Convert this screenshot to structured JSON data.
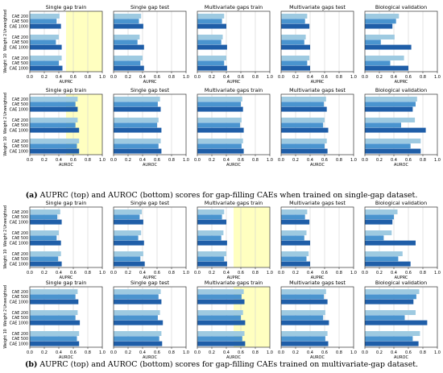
{
  "colors": {
    "cae200": "#9ecae1",
    "cae500": "#4a94cf",
    "cae1000": "#1f5ea8",
    "highlight": "#ffffc0",
    "grid": "#d0d0d0",
    "axis": "#333333"
  },
  "categories": [
    "CAE 200",
    "CAE 500",
    "CAE 1000"
  ],
  "group_labels": [
    "Unweighted",
    "Weight 2",
    "Weight 10"
  ],
  "tick_labels": [
    "0.0",
    "0.2",
    "0.4",
    "0.6",
    "0.8",
    "1.0"
  ],
  "captions": {
    "a": {
      "label": "(a)",
      "text": " AUPRC (top) and AUROC (bottom) scores for gap-filling CAEs when trained on single-gap dataset."
    },
    "b": {
      "label": "(b)",
      "text": " AUPRC (top) and AUROC (bottom) scores for gap-filling CAEs trained on multivariate-gap dataset."
    }
  },
  "chart_data": [
    {
      "id": "a-auprc",
      "type": "bar",
      "orientation": "horizontal",
      "xlabel": "AUPRC",
      "xlim": [
        0,
        1
      ],
      "highlight_panel": 0,
      "panels": [
        {
          "title": "Single gap train",
          "values": [
            [
              0.41,
              0.37,
              0.43
            ],
            [
              0.4,
              0.36,
              0.44
            ],
            [
              0.44,
              0.4,
              0.45
            ]
          ]
        },
        {
          "title": "Single gap test",
          "values": [
            [
              0.38,
              0.35,
              0.41
            ],
            [
              0.36,
              0.33,
              0.42
            ],
            [
              0.4,
              0.37,
              0.42
            ]
          ]
        },
        {
          "title": "Multivariate gaps train",
          "values": [
            [
              0.37,
              0.34,
              0.4
            ],
            [
              0.35,
              0.33,
              0.41
            ],
            [
              0.4,
              0.37,
              0.41
            ]
          ]
        },
        {
          "title": "Multivariate gaps test",
          "values": [
            [
              0.36,
              0.33,
              0.39
            ],
            [
              0.34,
              0.32,
              0.4
            ],
            [
              0.39,
              0.36,
              0.4
            ]
          ]
        },
        {
          "title": "Biological validation",
          "values": [
            [
              0.47,
              0.43,
              0.38
            ],
            [
              0.41,
              0.22,
              0.64
            ],
            [
              0.54,
              0.35,
              0.6
            ]
          ]
        }
      ]
    },
    {
      "id": "a-auroc",
      "type": "bar",
      "orientation": "horizontal",
      "xlabel": "AUROC",
      "xlim": [
        0,
        1
      ],
      "highlight_panel": 0,
      "panels": [
        {
          "title": "Single gap train",
          "values": [
            [
              0.66,
              0.63,
              0.66
            ],
            [
              0.66,
              0.63,
              0.68
            ],
            [
              0.68,
              0.65,
              0.68
            ]
          ]
        },
        {
          "title": "Single gap test",
          "values": [
            [
              0.64,
              0.61,
              0.65
            ],
            [
              0.62,
              0.6,
              0.66
            ],
            [
              0.65,
              0.62,
              0.66
            ]
          ]
        },
        {
          "title": "Multivariate gaps train",
          "values": [
            [
              0.62,
              0.6,
              0.63
            ],
            [
              0.61,
              0.59,
              0.64
            ],
            [
              0.63,
              0.61,
              0.64
            ]
          ]
        },
        {
          "title": "Multivariate gaps test",
          "values": [
            [
              0.62,
              0.59,
              0.63
            ],
            [
              0.6,
              0.58,
              0.65
            ],
            [
              0.63,
              0.6,
              0.64
            ]
          ]
        },
        {
          "title": "Biological validation",
          "values": [
            [
              0.72,
              0.7,
              0.66
            ],
            [
              0.69,
              0.5,
              0.84
            ],
            [
              0.77,
              0.63,
              0.77
            ]
          ]
        }
      ]
    },
    {
      "id": "b-auprc",
      "type": "bar",
      "orientation": "horizontal",
      "xlabel": "AUPRC",
      "xlim": [
        0,
        1
      ],
      "highlight_panel": 2,
      "panels": [
        {
          "title": "Single gap train",
          "values": [
            [
              0.42,
              0.38,
              0.44
            ],
            [
              0.4,
              0.37,
              0.43
            ],
            [
              0.43,
              0.39,
              0.44
            ]
          ]
        },
        {
          "title": "Single gap test",
          "values": [
            [
              0.39,
              0.36,
              0.41
            ],
            [
              0.38,
              0.34,
              0.42
            ],
            [
              0.41,
              0.37,
              0.43
            ]
          ]
        },
        {
          "title": "Multivariate gaps train",
          "values": [
            [
              0.37,
              0.34,
              0.4
            ],
            [
              0.36,
              0.33,
              0.41
            ],
            [
              0.4,
              0.37,
              0.41
            ]
          ]
        },
        {
          "title": "Multivariate gaps test",
          "values": [
            [
              0.36,
              0.33,
              0.39
            ],
            [
              0.35,
              0.32,
              0.4
            ],
            [
              0.38,
              0.35,
              0.4
            ]
          ]
        },
        {
          "title": "Biological validation",
          "values": [
            [
              0.45,
              0.4,
              0.38
            ],
            [
              0.37,
              0.26,
              0.7
            ],
            [
              0.52,
              0.46,
              0.63
            ]
          ]
        }
      ]
    },
    {
      "id": "b-auroc",
      "type": "bar",
      "orientation": "horizontal",
      "xlabel": "AUROC",
      "xlim": [
        0,
        1
      ],
      "highlight_panel": 2,
      "panels": [
        {
          "title": "Single gap train",
          "values": [
            [
              0.66,
              0.63,
              0.67
            ],
            [
              0.66,
              0.63,
              0.69
            ],
            [
              0.68,
              0.65,
              0.68
            ]
          ]
        },
        {
          "title": "Single gap test",
          "values": [
            [
              0.65,
              0.62,
              0.66
            ],
            [
              0.64,
              0.61,
              0.68
            ],
            [
              0.66,
              0.63,
              0.67
            ]
          ]
        },
        {
          "title": "Multivariate gaps train",
          "values": [
            [
              0.64,
              0.61,
              0.65
            ],
            [
              0.63,
              0.6,
              0.66
            ],
            [
              0.65,
              0.62,
              0.66
            ]
          ]
        },
        {
          "title": "Multivariate gaps test",
          "values": [
            [
              0.62,
              0.59,
              0.64
            ],
            [
              0.61,
              0.58,
              0.66
            ],
            [
              0.64,
              0.61,
              0.65
            ]
          ]
        },
        {
          "title": "Biological validation",
          "values": [
            [
              0.75,
              0.71,
              0.67
            ],
            [
              0.7,
              0.55,
              0.86
            ],
            [
              0.76,
              0.66,
              0.74
            ]
          ]
        }
      ]
    }
  ]
}
